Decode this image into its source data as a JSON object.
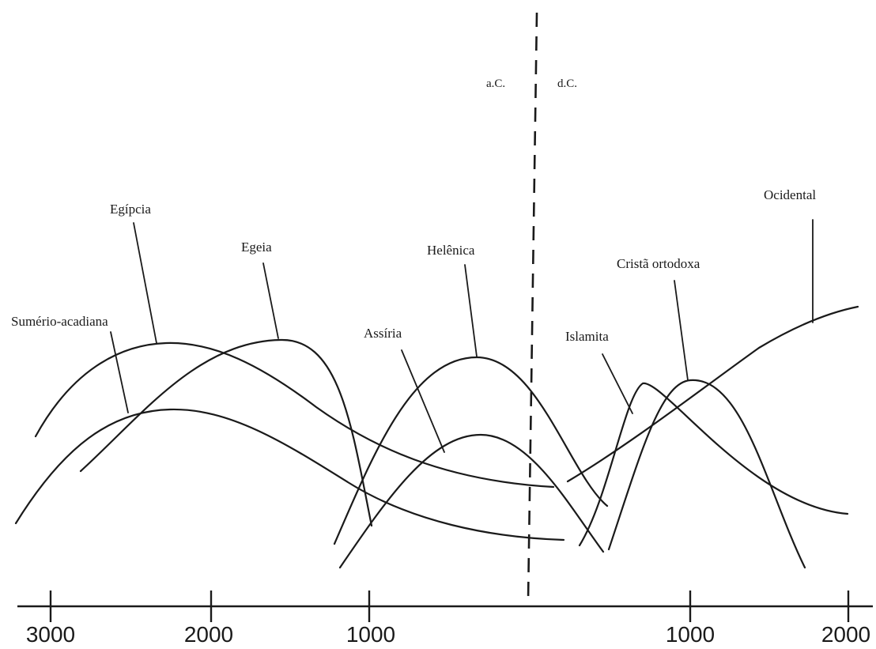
{
  "era_labels": {
    "bc": "a.C.",
    "ad": "d.C."
  },
  "axis": {
    "ticks": [
      "3000",
      "2000",
      "1000",
      "1000",
      "2000"
    ]
  },
  "civilizations": [
    {
      "key": "sumerio",
      "label": "Sumério-acadiana"
    },
    {
      "key": "egipcia",
      "label": "Egípcia"
    },
    {
      "key": "egeia",
      "label": "Egeia"
    },
    {
      "key": "assiria",
      "label": "Assíria"
    },
    {
      "key": "helenica",
      "label": "Helênica"
    },
    {
      "key": "islamita",
      "label": "Islamita"
    },
    {
      "key": "crista",
      "label": "Cristã ortodoxa"
    },
    {
      "key": "ocidental",
      "label": "Ocidental"
    }
  ]
}
